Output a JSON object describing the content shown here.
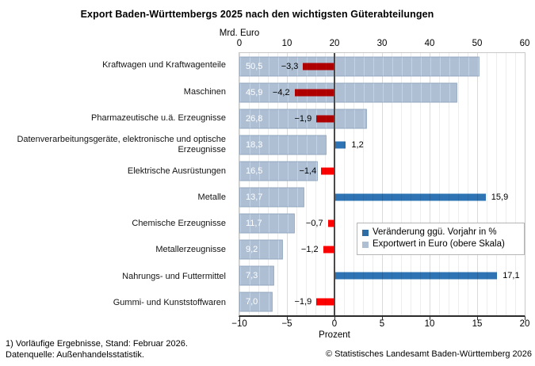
{
  "title": "Export Baden-Württembergs 2025 nach den wichtigsten Güterabteilungen",
  "chart_data": {
    "type": "bar",
    "orientation": "horizontal",
    "categories": [
      "Kraftwagen und Kraftwagenteile",
      "Maschinen",
      "Pharmazeutische u.ä. Erzeugnisse",
      "Datenverarbeitungsgeräte, elektronische und optische Erzeugnisse",
      "Elektrische Ausrüstungen",
      "Metalle",
      "Chemische Erzeugnisse",
      "Metallerzeugnisse",
      "Nahrungs- und Futtermittel",
      "Gummi- und Kunststoffwaren"
    ],
    "series": [
      {
        "name": "Exportwert in Euro (obere Skala)",
        "values": [
          50.5,
          45.9,
          26.8,
          18.3,
          16.5,
          13.7,
          11.7,
          9.2,
          7.3,
          7.0
        ],
        "axis": "top"
      },
      {
        "name": "Veränderung ggü. Vorjahr in %",
        "values": [
          -3.3,
          -4.2,
          -1.9,
          1.2,
          -1.4,
          15.9,
          -0.7,
          -1.2,
          17.1,
          -1.9
        ],
        "axis": "bottom"
      }
    ],
    "top_axis": {
      "label": "Mrd. Euro",
      "min": 0,
      "max": 60,
      "ticks": [
        0,
        10,
        20,
        30,
        40,
        50,
        60
      ]
    },
    "bottom_axis": {
      "label": "Prozent",
      "min": -10,
      "max": 20,
      "ticks": [
        -10,
        -5,
        0,
        5,
        10,
        15,
        20
      ]
    },
    "grid": "on",
    "colors": {
      "export_bar": "#aebfd3",
      "positive_change": "#2e74b5",
      "negative_change": "#ff0000",
      "zero_line": "#4a4a4a"
    }
  },
  "legend": {
    "items": [
      {
        "label": "Veränderung ggü. Vorjahr in %",
        "color": "#2e6da4"
      },
      {
        "label": "Exportwert in Euro (obere Skala)",
        "color": "#aebfd3"
      }
    ]
  },
  "footnotes": [
    "1) Vorläufige Ergebnisse, Stand: Februar 2026.",
    "Datenquelle: Außenhandelsstatistik."
  ],
  "copyright": "© Statistisches Landesamt Baden-Württemberg 2026"
}
